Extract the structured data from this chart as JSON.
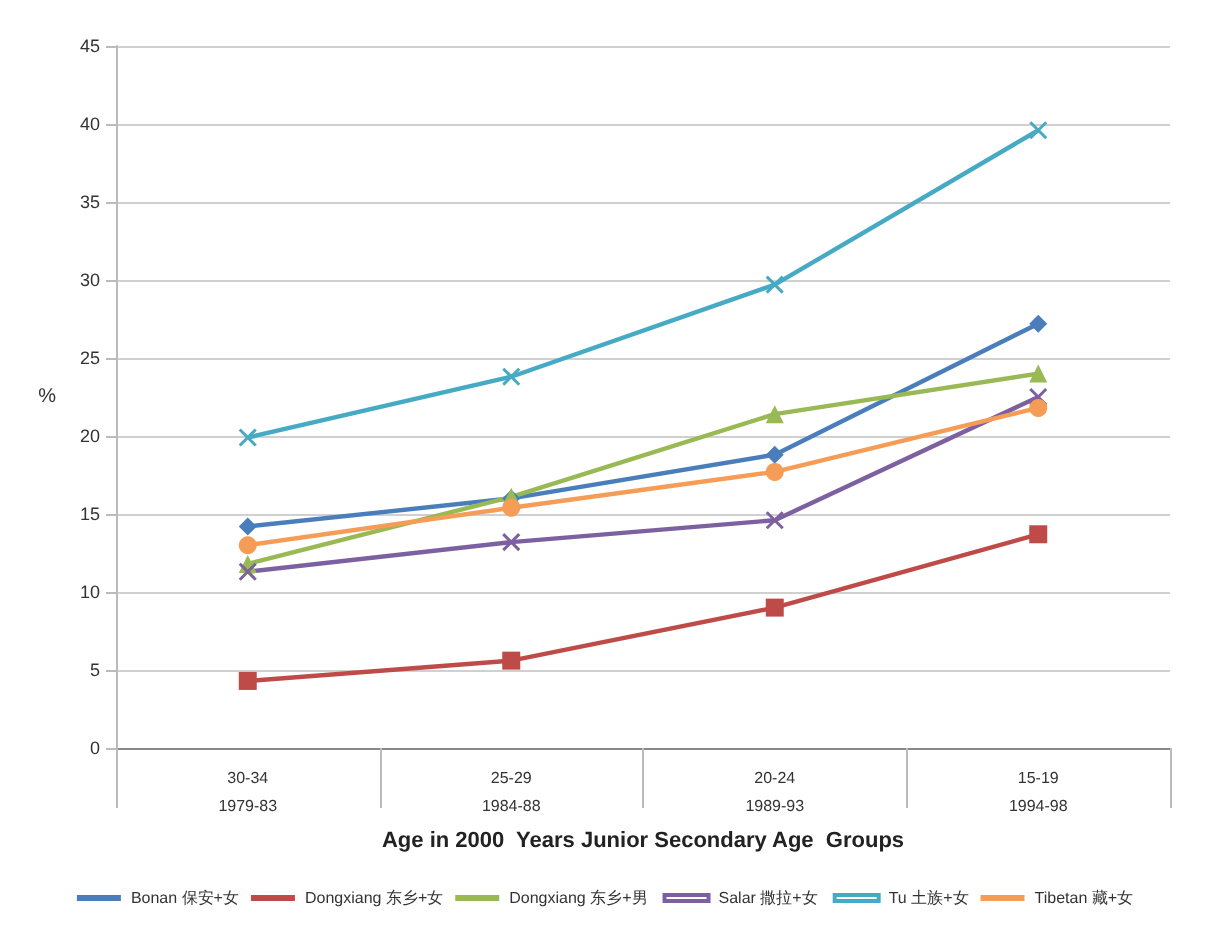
{
  "chart_data": {
    "type": "line",
    "xlabel": "Age in 2000  Years Junior Secondary Age  Groups",
    "ylabel": "%",
    "categories": [
      "30-34\n1979-83",
      "25-29\n1984-88",
      "20-24\n1989-93",
      "15-19\n1994-98"
    ],
    "series": [
      {
        "name": "Bonan 保安+女",
        "color": "#4a7ebb",
        "marker": "diamond",
        "values": [
          14.2,
          16.0,
          18.8,
          27.2
        ]
      },
      {
        "name": "Dongxiang 东乡+女",
        "color": "#be4b48",
        "marker": "square",
        "values": [
          4.3,
          5.6,
          9.0,
          13.7
        ]
      },
      {
        "name": "Dongxiang 东乡+男",
        "color": "#98b954",
        "marker": "triangle",
        "values": [
          11.8,
          16.1,
          21.4,
          24.0
        ]
      },
      {
        "name": "Salar 撒拉+女",
        "color": "#7d60a0",
        "marker": "cross",
        "values": [
          11.3,
          13.2,
          14.6,
          22.5
        ]
      },
      {
        "name": "Tu 土族+女",
        "color": "#46aac5",
        "marker": "cross",
        "values": [
          19.9,
          23.8,
          29.7,
          39.6
        ]
      },
      {
        "name": "Tibetan 藏+女",
        "color": "#f59d56",
        "marker": "circle",
        "values": [
          13.0,
          15.4,
          17.7,
          21.8
        ]
      }
    ],
    "ylim": [
      0,
      45
    ],
    "yticks": [
      0,
      5,
      10,
      15,
      20,
      25,
      30,
      35,
      40,
      45
    ],
    "grid": "y",
    "legend": "bottom",
    "line_style": "solid"
  }
}
